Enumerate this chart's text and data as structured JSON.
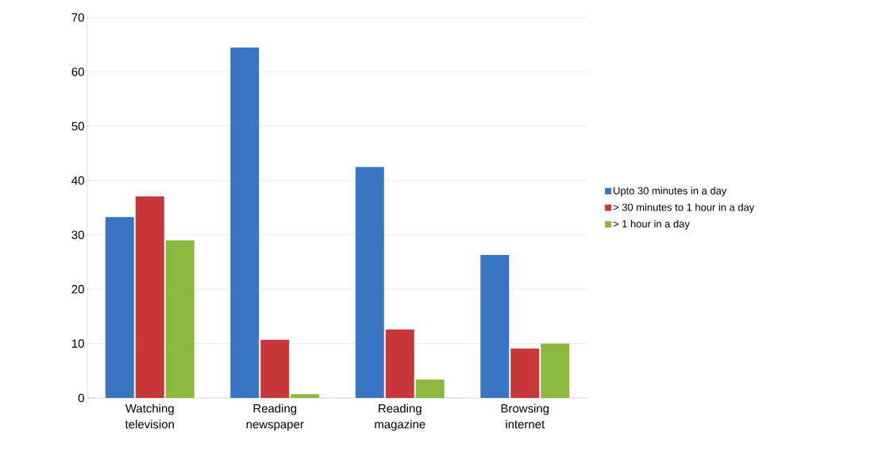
{
  "chart_data": {
    "type": "bar",
    "categories": [
      "Watching television",
      "Reading newspaper",
      "Reading magazine",
      "Browsing internet"
    ],
    "series": [
      {
        "name": "Upto 30 minutes in a day",
        "color": "#3a75c4",
        "values": [
          33.3,
          64.5,
          42.5,
          26.3
        ]
      },
      {
        "name": "> 30 minutes to 1 hour in a day",
        "color": "#c8373a",
        "values": [
          37.1,
          10.7,
          12.6,
          9.1
        ]
      },
      {
        "name": "> 1 hour in a day",
        "color": "#8db83e",
        "values": [
          29,
          0.7,
          3.4,
          10
        ]
      }
    ],
    "ylim": [
      0,
      70
    ],
    "yticks": [
      0,
      10,
      20,
      30,
      40,
      50,
      60,
      70
    ],
    "grid": "y",
    "legend": "right"
  }
}
